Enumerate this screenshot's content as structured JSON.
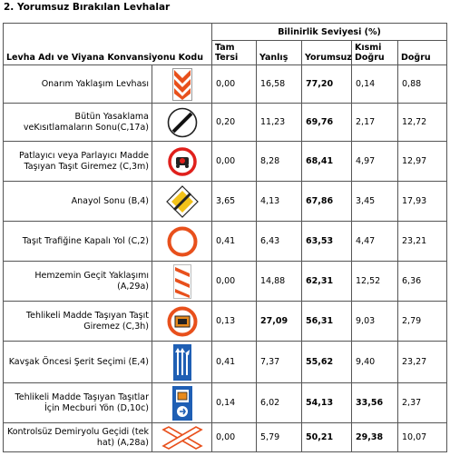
{
  "title": "2. Yorumsuz Bırakılan Levhalar",
  "header": {
    "name_col": "Levha Adı ve Viyana Konvansiyonu Kodu",
    "group": "Bilinirlik Seviyesi (%)",
    "cols": [
      "Tam Tersi",
      "Yanlış",
      "Yorumsuz",
      "Kısmi Doğru",
      "Doğru"
    ]
  },
  "rows": [
    {
      "name": "Onarım Yaklaşım Levhası",
      "icon": "chevron-plate-sign-icon",
      "values": [
        "0,00",
        "16,58",
        "77,20",
        "0,14",
        "0,88"
      ],
      "bold": [
        false,
        false,
        true,
        false,
        false
      ]
    },
    {
      "name": "Bütün Yasaklama veKısıtlamaların Sonu(C,17a)",
      "icon": "end-of-restrictions-sign-icon",
      "values": [
        "0,20",
        "11,23",
        "69,76",
        "2,17",
        "12,72"
      ],
      "bold": [
        false,
        false,
        true,
        false,
        false
      ]
    },
    {
      "name": "Patlayıcı veya Parlayıcı Madde Taşıyan Taşıt Giremez (C,3m)",
      "icon": "no-explosives-vehicle-sign-icon",
      "values": [
        "0,00",
        "8,28",
        "68,41",
        "4,97",
        "12,97"
      ],
      "bold": [
        false,
        false,
        true,
        false,
        false
      ]
    },
    {
      "name": "Anayol Sonu (B,4)",
      "icon": "end-of-priority-road-sign-icon",
      "values": [
        "3,65",
        "4,13",
        "67,86",
        "3,45",
        "17,93"
      ],
      "bold": [
        false,
        false,
        true,
        false,
        false
      ]
    },
    {
      "name": "Taşıt Trafiğine Kapalı Yol (C,2)",
      "icon": "closed-to-vehicles-sign-icon",
      "values": [
        "0,41",
        "6,43",
        "63,53",
        "4,47",
        "23,21"
      ],
      "bold": [
        false,
        false,
        true,
        false,
        false
      ]
    },
    {
      "name": "Hemzemin Geçit Yaklaşımı (A,29a)",
      "icon": "level-crossing-approach-sign-icon",
      "values": [
        "0,00",
        "14,88",
        "62,31",
        "12,52",
        "6,36"
      ],
      "bold": [
        false,
        false,
        true,
        false,
        false
      ]
    },
    {
      "name": "Tehlikeli Madde Taşıyan Taşıt Giremez (C,3h)",
      "icon": "no-dangerous-goods-sign-icon",
      "values": [
        "0,13",
        "27,09",
        "56,31",
        "9,03",
        "2,79"
      ],
      "bold": [
        false,
        true,
        true,
        false,
        false
      ]
    },
    {
      "name": "Kavşak Öncesi Şerit Seçimi (E,4)",
      "icon": "lane-selection-sign-icon",
      "values": [
        "0,41",
        "7,37",
        "55,62",
        "9,40",
        "23,27"
      ],
      "bold": [
        false,
        false,
        true,
        false,
        false
      ]
    },
    {
      "name": "Tehlikeli Madde Taşıyan Taşıtlar İçin Mecburi Yön (D,10c)",
      "icon": "dangerous-goods-route-sign-icon",
      "values": [
        "0,14",
        "6,02",
        "54,13",
        "33,56",
        "2,37"
      ],
      "bold": [
        false,
        false,
        true,
        true,
        false
      ]
    },
    {
      "name": "Kontrolsüz Demiryolu Geçidi (tek hat) (A,28a)",
      "icon": "saint-andrew-cross-sign-icon",
      "values": [
        "0,00",
        "5,79",
        "50,21",
        "29,38",
        "10,07"
      ],
      "bold": [
        false,
        false,
        true,
        true,
        false
      ]
    }
  ]
}
